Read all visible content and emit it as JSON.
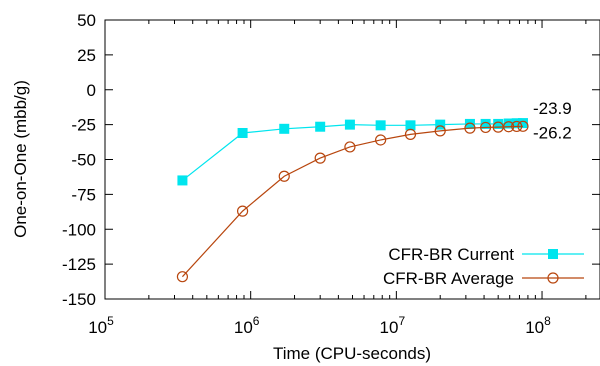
{
  "chart_data": {
    "type": "line",
    "xlabel": "Time (CPU-seconds)",
    "ylabel": "One-on-One (mbb/g)",
    "x_scale": "log",
    "xlim": [
      100000,
      250000000
    ],
    "ylim": [
      -150,
      50
    ],
    "x_ticks": [
      {
        "value": 100000,
        "base": "10",
        "exp": "5"
      },
      {
        "value": 1000000,
        "base": "10",
        "exp": "6"
      },
      {
        "value": 10000000,
        "base": "10",
        "exp": "7"
      },
      {
        "value": 100000000,
        "base": "10",
        "exp": "8"
      }
    ],
    "y_ticks": [
      50,
      25,
      0,
      -25,
      -50,
      -75,
      -100,
      -125,
      -150
    ],
    "y_tick_labels": [
      "50",
      "25",
      "0",
      "-25",
      "-50",
      "-75",
      "-100",
      "-125",
      "-150"
    ],
    "grid": false,
    "legend_position": "bottom-right",
    "series": [
      {
        "name": "CFR-BR Current",
        "color": "#00e5ee",
        "marker": "filled-square",
        "x": [
          340000,
          880000,
          1700000,
          3000000,
          4800000,
          7800000,
          12500000,
          20000000,
          32000000,
          41000000,
          50000000,
          59000000,
          67000000,
          74000000
        ],
        "y": [
          -65,
          -31,
          -28,
          -26.5,
          -25,
          -25.5,
          -25.5,
          -25,
          -24.5,
          -24.5,
          -24.5,
          -24.2,
          -24,
          -23.9
        ],
        "end_label": "-23.9"
      },
      {
        "name": "CFR-BR Average",
        "color": "#b8460e",
        "marker": "open-circle",
        "x": [
          340000,
          880000,
          1700000,
          3000000,
          4800000,
          7800000,
          12500000,
          20000000,
          32000000,
          41000000,
          50000000,
          59000000,
          67000000,
          74000000
        ],
        "y": [
          -134,
          -87,
          -62,
          -49,
          -41,
          -36,
          -32,
          -29.5,
          -27.5,
          -27,
          -26.8,
          -26.5,
          -26.3,
          -26.2
        ],
        "end_label": "-26.2"
      }
    ]
  }
}
